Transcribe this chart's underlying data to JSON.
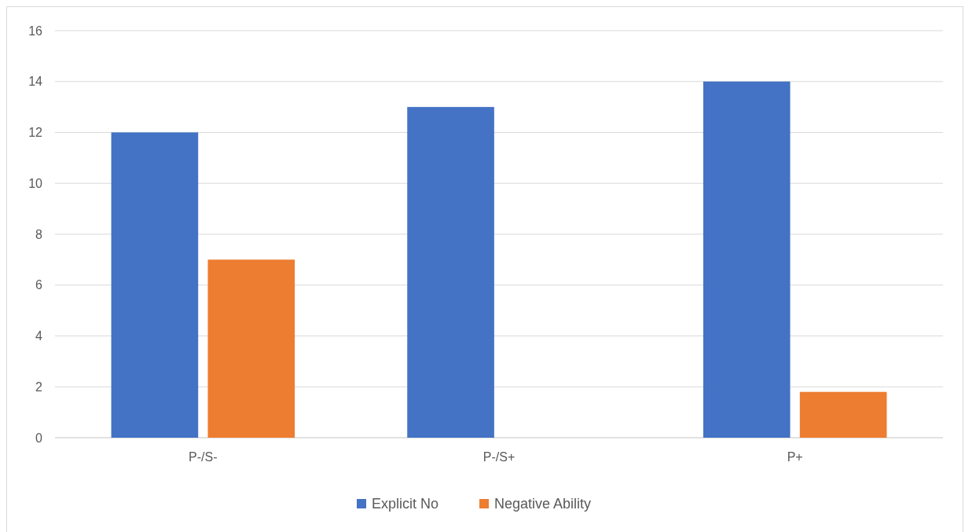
{
  "chart_data": {
    "type": "bar",
    "categories": [
      "P-/S-",
      "P-/S+",
      "P+"
    ],
    "series": [
      {
        "name": "Explicit No",
        "color": "#4472c4",
        "values": [
          12,
          13,
          14
        ]
      },
      {
        "name": "Negative Ability",
        "color": "#ed7d31",
        "values": [
          7,
          0,
          1.8
        ]
      }
    ],
    "ylim": [
      0,
      16
    ],
    "yticks": [
      0,
      2,
      4,
      6,
      8,
      10,
      12,
      14,
      16
    ],
    "grid": "y",
    "legend": "bottom"
  }
}
